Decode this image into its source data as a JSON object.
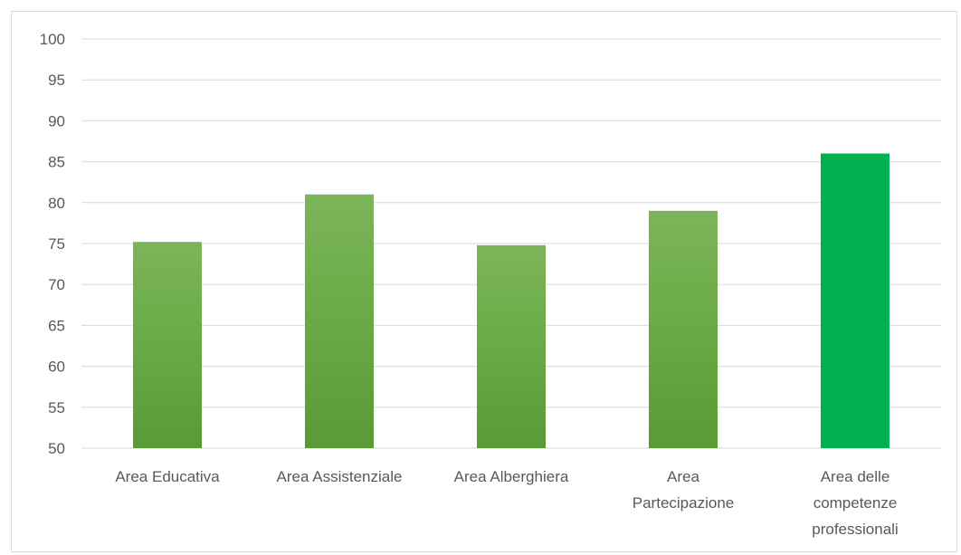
{
  "chart_data": {
    "type": "bar",
    "categories": [
      [
        "Area Educativa"
      ],
      [
        "Area Assistenziale"
      ],
      [
        "Area Alberghiera"
      ],
      [
        "Area",
        "Partecipazione"
      ],
      [
        "Area delle",
        "competenze",
        "professionali"
      ]
    ],
    "values": [
      75.2,
      81.0,
      74.8,
      79.0,
      86.0
    ],
    "ylim": [
      50,
      100
    ],
    "yticks": [
      50,
      55,
      60,
      65,
      70,
      75,
      80,
      85,
      90,
      95,
      100
    ],
    "grid": true,
    "colors": {
      "bar_gradient_top": "#7bb55a",
      "bar_gradient_bottom": "#5a9a34",
      "highlight_bar": "#00b050",
      "gridline": "#d9d9d9",
      "axis_text": "#595959"
    },
    "highlight_index": 4
  }
}
